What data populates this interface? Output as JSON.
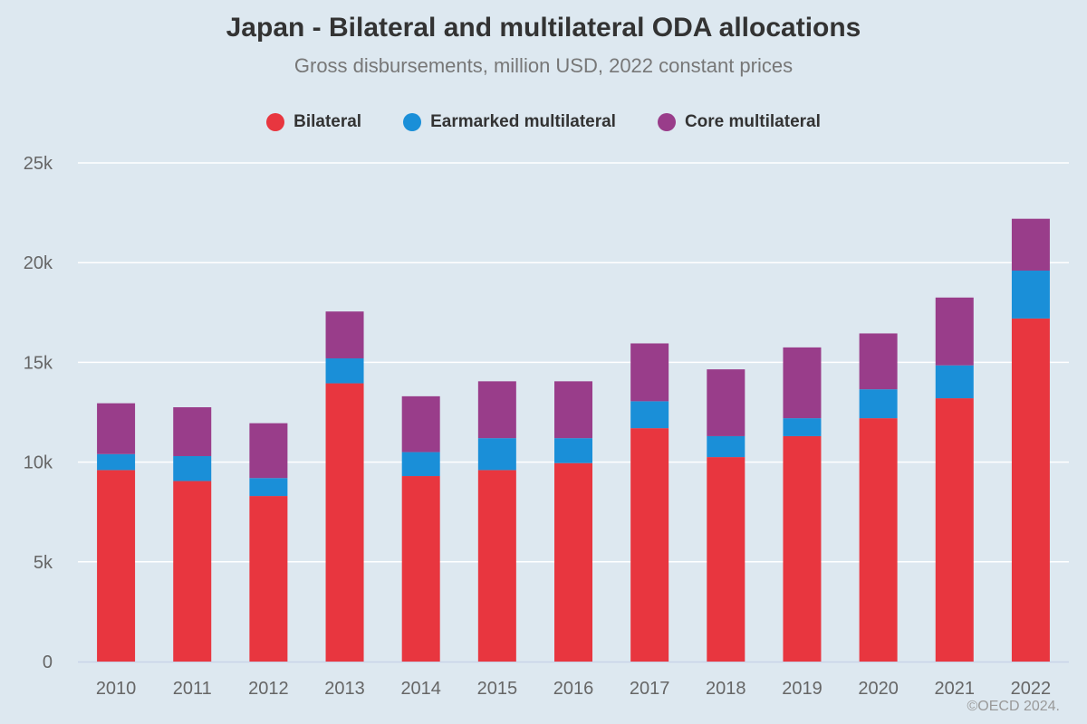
{
  "chart_data": {
    "type": "bar",
    "stacked": true,
    "title": "Japan - Bilateral and multilateral ODA allocations",
    "subtitle": "Gross disbursements, million USD, 2022 constant prices",
    "categories": [
      "2010",
      "2011",
      "2012",
      "2013",
      "2014",
      "2015",
      "2016",
      "2017",
      "2018",
      "2019",
      "2020",
      "2021",
      "2022"
    ],
    "series": [
      {
        "name": "Bilateral",
        "color": "#e8363f",
        "values": [
          9600,
          9050,
          8300,
          13950,
          9300,
          9600,
          9950,
          11700,
          10250,
          11300,
          12200,
          13200,
          17200
        ]
      },
      {
        "name": "Earmarked multilateral",
        "color": "#1a8fd8",
        "values": [
          800,
          1250,
          900,
          1250,
          1200,
          1600,
          1250,
          1350,
          1050,
          900,
          1450,
          1650,
          2400
        ]
      },
      {
        "name": "Core multilateral",
        "color": "#993d8a",
        "values": [
          2550,
          2450,
          2750,
          2350,
          2800,
          2850,
          2850,
          2900,
          3350,
          3550,
          2800,
          3400,
          2600
        ]
      }
    ],
    "y_ticks": [
      "0",
      "5k",
      "10k",
      "15k",
      "20k",
      "25k"
    ],
    "ylim": [
      0,
      25000
    ],
    "xlabel": "",
    "ylabel": "",
    "grid": true,
    "legend_position": "top-center"
  },
  "credit": "©OECD 2024."
}
